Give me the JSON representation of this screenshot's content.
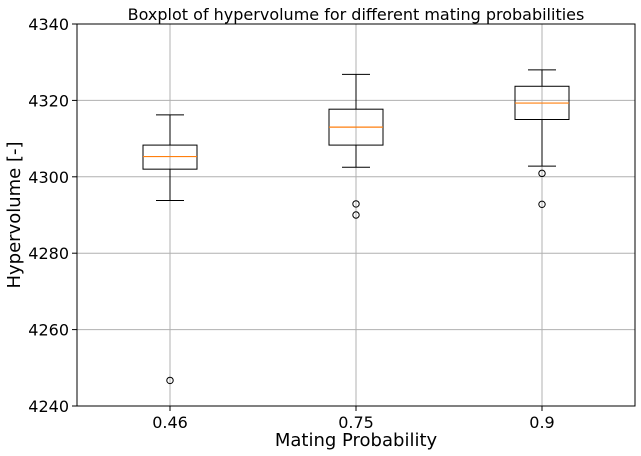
{
  "chart_data": {
    "type": "boxplot",
    "title": "Boxplot of hypervolume for different mating probabilities",
    "xlabel": "Mating Probability",
    "ylabel": "Hypervolume [-]",
    "ylim": [
      4240,
      4340
    ],
    "yticks": [
      4240,
      4260,
      4280,
      4300,
      4320,
      4340
    ],
    "grid": true,
    "categories": [
      "0.46",
      "0.75",
      "0.9"
    ],
    "boxes": [
      {
        "label": "0.46",
        "whisker_low": 4293.8,
        "q1": 4302.0,
        "median": 4305.3,
        "q3": 4308.3,
        "whisker_high": 4316.2,
        "outliers": [
          4246.7
        ]
      },
      {
        "label": "0.75",
        "whisker_low": 4302.5,
        "q1": 4308.3,
        "median": 4313.0,
        "q3": 4317.7,
        "whisker_high": 4326.8,
        "outliers": [
          4292.9,
          4290.0
        ]
      },
      {
        "label": "0.9",
        "whisker_low": 4302.8,
        "q1": 4315.0,
        "median": 4319.3,
        "q3": 4323.7,
        "whisker_high": 4328.0,
        "outliers": [
          4300.9,
          4292.8
        ]
      }
    ],
    "colors": {
      "box": "#000000",
      "median": "#ff7f0e",
      "grid": "#b0b0b0"
    }
  }
}
